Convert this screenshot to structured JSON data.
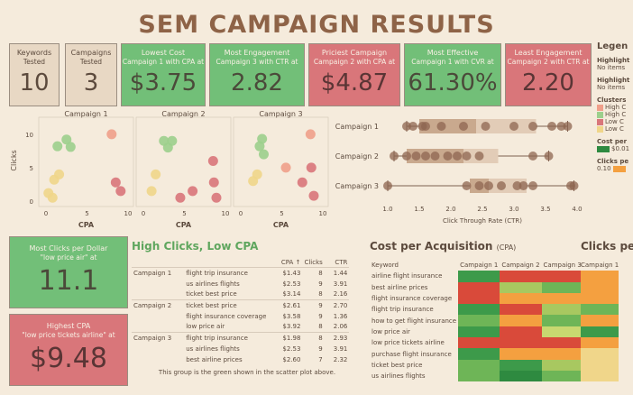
{
  "title": "SEM CAMPAIGN RESULTS",
  "kpis": [
    {
      "label": "Keywords",
      "label2": "Tested",
      "value": "10",
      "color": "neutral"
    },
    {
      "label": "Campaigns",
      "label2": "Tested",
      "value": "3",
      "color": "neutral"
    },
    {
      "label": "Lowest Cost",
      "label2": "Campaign 1 with CPA at",
      "value": "$3.75",
      "color": "green"
    },
    {
      "label": "Most Engagement",
      "label2": "Campaign 3 with CTR at",
      "value": "2.82",
      "color": "green"
    },
    {
      "label": "Priciest Campaign",
      "label2": "Campaign 2 with CPA at",
      "value": "$4.87",
      "color": "red"
    },
    {
      "label": "Most Effective",
      "label2": "Campaign 1 with CVR at",
      "value": "61.30%",
      "color": "green"
    },
    {
      "label": "Least Engagement",
      "label2": "Campaign 2 with CTR at",
      "value": "2.20",
      "color": "red"
    }
  ],
  "legend": {
    "title": "Legen",
    "h1": "Highlight",
    "h1_sub": "No items",
    "h2": "Highlight",
    "h2_sub": "No items",
    "clusters_title": "Clusters",
    "clusters": [
      {
        "label": "High C",
        "color": "#f0a08a"
      },
      {
        "label": "High C",
        "color": "#9ccf8c"
      },
      {
        "label": "Low C",
        "color": "#d9767a"
      },
      {
        "label": "Low C",
        "color": "#f0d68a"
      }
    ],
    "cost_title": "Cost per",
    "cost_min": "$0.01",
    "clicks_title": "Clicks pe",
    "clicks_min": "0.10"
  },
  "scatter": {
    "ylabel": "Clicks",
    "xlabel": "CPA",
    "panels": [
      {
        "name": "Campaign 1",
        "points": [
          [
            1.4,
            8.2,
            "#9ccf8c"
          ],
          [
            2.5,
            9.2,
            "#9ccf8c"
          ],
          [
            3.0,
            8.1,
            "#9ccf8c"
          ],
          [
            1.0,
            3.2,
            "#f0d68a"
          ],
          [
            1.6,
            4.0,
            "#f0d68a"
          ],
          [
            0.3,
            1.2,
            "#f0d68a"
          ],
          [
            0.8,
            0.5,
            "#f0d68a"
          ],
          [
            8.0,
            10.0,
            "#f0a08a"
          ],
          [
            8.5,
            2.8,
            "#d9767a"
          ],
          [
            9.1,
            1.5,
            "#d9767a"
          ]
        ]
      },
      {
        "name": "Campaign 2",
        "points": [
          [
            2.5,
            9.0,
            "#9ccf8c"
          ],
          [
            3.5,
            9.0,
            "#9ccf8c"
          ],
          [
            3.0,
            8.0,
            "#9ccf8c"
          ],
          [
            1.5,
            4.0,
            "#f0d68a"
          ],
          [
            1.0,
            1.5,
            "#f0d68a"
          ],
          [
            8.5,
            6.0,
            "#d9767a"
          ],
          [
            6.0,
            1.5,
            "#d9767a"
          ],
          [
            4.5,
            0.5,
            "#d9767a"
          ],
          [
            8.6,
            2.8,
            "#d9767a"
          ],
          [
            8.9,
            0.5,
            "#d9767a"
          ]
        ]
      },
      {
        "name": "Campaign 3",
        "points": [
          [
            2.6,
            9.3,
            "#9ccf8c"
          ],
          [
            2.3,
            8.2,
            "#9ccf8c"
          ],
          [
            2.8,
            7.0,
            "#9ccf8c"
          ],
          [
            2.0,
            4.0,
            "#f0d68a"
          ],
          [
            1.5,
            3.0,
            "#f0d68a"
          ],
          [
            8.5,
            10.0,
            "#f0a08a"
          ],
          [
            5.5,
            5.0,
            "#f0a08a"
          ],
          [
            8.6,
            5.0,
            "#d9767a"
          ],
          [
            7.5,
            2.8,
            "#d9767a"
          ],
          [
            8.9,
            0.8,
            "#d9767a"
          ]
        ]
      }
    ],
    "xticks": [
      0,
      5,
      10
    ],
    "yticks": [
      0,
      5,
      10
    ]
  },
  "boxplot": {
    "xlabel": "Click Through Rate (CTR)",
    "xticks": [
      1.0,
      1.5,
      2.0,
      2.5,
      3.0,
      3.5,
      4.0
    ],
    "rows": [
      {
        "name": "Campaign 1",
        "min": 1.3,
        "q1": 1.5,
        "median": 2.4,
        "q3": 3.35,
        "max": 3.85,
        "points": [
          1.3,
          1.4,
          1.55,
          1.6,
          1.85,
          2.2,
          2.55,
          3.0,
          3.3,
          3.6,
          3.75,
          3.85
        ]
      },
      {
        "name": "Campaign 2",
        "min": 1.1,
        "q1": 1.3,
        "median": 2.2,
        "q3": 2.75,
        "max": 3.55,
        "points": [
          1.1,
          1.3,
          1.45,
          1.6,
          1.75,
          1.95,
          2.1,
          2.25,
          2.45,
          3.3,
          3.55
        ]
      },
      {
        "name": "Campaign 3",
        "min": 1.0,
        "q1": 2.3,
        "median": 2.6,
        "q3": 3.2,
        "max": 3.95,
        "points": [
          1.0,
          2.25,
          2.45,
          2.6,
          2.8,
          3.05,
          3.15,
          3.3,
          3.9,
          3.95
        ]
      }
    ]
  },
  "most_clicks": {
    "label": "Most Clicks per Dollar",
    "sub": "\"low price air\" at",
    "value": "11.1"
  },
  "highest_cpa": {
    "label": "Highest CPA",
    "sub": "\"low price tickets airline\" at",
    "value": "$9.48"
  },
  "high_clicks": {
    "title": "High Clicks, Low CPA",
    "cols": [
      "CPA ↑",
      "Clicks",
      "CTR"
    ],
    "groups": [
      {
        "name": "Campaign 1",
        "rows": [
          [
            "flight trip insurance",
            "$1.43",
            "8",
            "1.44"
          ],
          [
            "us airlines flights",
            "$2.53",
            "9",
            "3.91"
          ],
          [
            "ticket best price",
            "$3.14",
            "8",
            "2.16"
          ]
        ]
      },
      {
        "name": "Campaign 2",
        "rows": [
          [
            "ticket best price",
            "$2.61",
            "9",
            "2.70"
          ],
          [
            "flight insurance coverage",
            "$3.58",
            "9",
            "1.36"
          ],
          [
            "low price air",
            "$3.92",
            "8",
            "2.06"
          ]
        ]
      },
      {
        "name": "Campaign 3",
        "rows": [
          [
            "flight trip insurance",
            "$1.98",
            "8",
            "2.93"
          ],
          [
            "us airlines flights",
            "$2.53",
            "9",
            "3.91"
          ],
          [
            "best airline prices",
            "$2.60",
            "7",
            "2.32"
          ]
        ]
      }
    ],
    "note": "This group is the green shown in the scatter plot above."
  },
  "cpa_heat": {
    "title": "Cost per Acquisition",
    "title_sub": "(CPA)",
    "col_keyword": "Keyword",
    "cols": [
      "Campaign 1",
      "Campaign 2",
      "Campaign 3"
    ],
    "rows": [
      {
        "kw": "airline flight insurance",
        "colors": [
          "#3d9a4a",
          "#d94a3a",
          "#d94a3a"
        ]
      },
      {
        "kw": "best airline prices",
        "colors": [
          "#d94a3a",
          "#a8c860",
          "#6eb557"
        ]
      },
      {
        "kw": "flight insurance coverage",
        "colors": [
          "#d94a3a",
          "#f4a040",
          "#f4a040"
        ]
      },
      {
        "kw": "flight trip insurance",
        "colors": [
          "#3d9a4a",
          "#d94a3a",
          "#a8c860"
        ]
      },
      {
        "kw": "how to get flight insurance",
        "colors": [
          "#6eb557",
          "#f4a040",
          "#6eb557"
        ]
      },
      {
        "kw": "low price air",
        "colors": [
          "#3d9a4a",
          "#d94a3a",
          "#c8d870"
        ]
      },
      {
        "kw": "low price tickets airline",
        "colors": [
          "#d94a3a",
          "#d94a3a",
          "#d94a3a"
        ]
      },
      {
        "kw": "purchase flight insurance",
        "colors": [
          "#3d9a4a",
          "#f4a040",
          "#f4a040"
        ]
      },
      {
        "kw": "ticket best price",
        "colors": [
          "#6eb557",
          "#3d9a4a",
          "#a8c860"
        ]
      },
      {
        "kw": "us airlines flights",
        "colors": [
          "#6eb557",
          "#2e8a40",
          "#6eb557"
        ]
      }
    ]
  },
  "cpp_heat": {
    "title": "Clicks pe",
    "cols": [
      "Campaign 1"
    ],
    "rows": [
      "#f4a040",
      "#f4a040",
      "#f4a040",
      "#6eb557",
      "#f4a040",
      "#3d9a4a",
      "#f4a040",
      "#f0d68a",
      "#f0d68a",
      "#f0d68a"
    ]
  }
}
